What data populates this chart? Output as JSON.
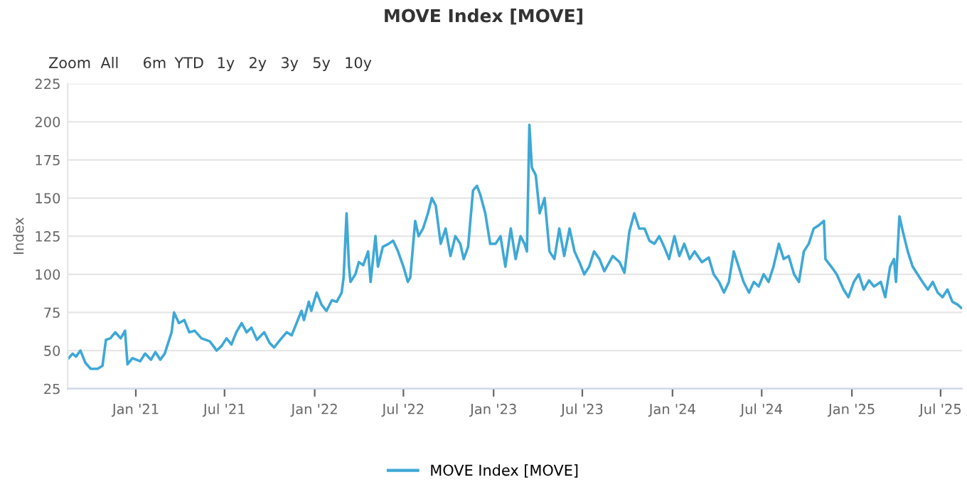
{
  "chart_data": {
    "type": "line",
    "title": "MOVE Index [MOVE]",
    "ylabel": "Index",
    "annotations": [
      "Zoom",
      "All",
      "6m",
      "YTD",
      "1y",
      "2y",
      "3y",
      "5y",
      "10y"
    ],
    "xlim": [
      "2020-08-15",
      "2025-08-14"
    ],
    "ylim": [
      25,
      225
    ],
    "yticks": [
      25,
      50,
      75,
      100,
      125,
      150,
      175,
      200,
      225
    ],
    "xticks": [
      {
        "value": "2021-01-01",
        "label": "Jan '21"
      },
      {
        "value": "2021-07-01",
        "label": "Jul '21"
      },
      {
        "value": "2022-01-01",
        "label": "Jan '22"
      },
      {
        "value": "2022-07-01",
        "label": "Jul '22"
      },
      {
        "value": "2023-01-01",
        "label": "Jan '23"
      },
      {
        "value": "2023-07-01",
        "label": "Jul '23"
      },
      {
        "value": "2024-01-01",
        "label": "Jan '24"
      },
      {
        "value": "2024-07-01",
        "label": "Jul '24"
      },
      {
        "value": "2025-01-01",
        "label": "Jan '25"
      },
      {
        "value": "2025-07-01",
        "label": "Jul '25"
      }
    ],
    "grid": "y",
    "legend": "bottom",
    "marker": "none",
    "line_style": "solid",
    "series": [
      {
        "name": "MOVE Index [MOVE]",
        "color": "#3ea8d6",
        "x": [
          "2020-08-17",
          "2020-08-25",
          "2020-09-01",
          "2020-09-10",
          "2020-09-20",
          "2020-10-01",
          "2020-10-15",
          "2020-10-25",
          "2020-11-01",
          "2020-11-10",
          "2020-11-20",
          "2020-12-01",
          "2020-12-10",
          "2020-12-15",
          "2020-12-25",
          "2021-01-10",
          "2021-01-20",
          "2021-02-01",
          "2021-02-10",
          "2021-02-20",
          "2021-03-01",
          "2021-03-15",
          "2021-03-20",
          "2021-03-30",
          "2021-04-10",
          "2021-04-20",
          "2021-05-01",
          "2021-05-15",
          "2021-06-01",
          "2021-06-15",
          "2021-06-25",
          "2021-07-05",
          "2021-07-15",
          "2021-07-25",
          "2021-08-05",
          "2021-08-15",
          "2021-08-25",
          "2021-09-05",
          "2021-09-20",
          "2021-10-01",
          "2021-10-10",
          "2021-10-25",
          "2021-11-05",
          "2021-11-15",
          "2021-11-25",
          "2021-12-05",
          "2021-12-10",
          "2021-12-20",
          "2021-12-25",
          "2022-01-05",
          "2022-01-15",
          "2022-01-25",
          "2022-02-05",
          "2022-02-15",
          "2022-02-25",
          "2022-03-01",
          "2022-03-07",
          "2022-03-12",
          "2022-03-15",
          "2022-03-25",
          "2022-04-01",
          "2022-04-10",
          "2022-04-20",
          "2022-04-25",
          "2022-05-05",
          "2022-05-10",
          "2022-05-20",
          "2022-06-01",
          "2022-06-10",
          "2022-06-20",
          "2022-07-01",
          "2022-07-10",
          "2022-07-15",
          "2022-07-25",
          "2022-08-01",
          "2022-08-10",
          "2022-08-20",
          "2022-08-28",
          "2022-09-05",
          "2022-09-15",
          "2022-09-25",
          "2022-10-05",
          "2022-10-15",
          "2022-10-25",
          "2022-11-01",
          "2022-11-10",
          "2022-11-20",
          "2022-11-28",
          "2022-12-05",
          "2022-12-15",
          "2022-12-25",
          "2023-01-05",
          "2023-01-15",
          "2023-01-25",
          "2023-02-05",
          "2023-02-15",
          "2023-02-25",
          "2023-03-05",
          "2023-03-10",
          "2023-03-15",
          "2023-03-20",
          "2023-03-28",
          "2023-04-05",
          "2023-04-15",
          "2023-04-25",
          "2023-05-05",
          "2023-05-15",
          "2023-05-25",
          "2023-06-05",
          "2023-06-15",
          "2023-06-25",
          "2023-07-05",
          "2023-07-15",
          "2023-07-25",
          "2023-08-05",
          "2023-08-15",
          "2023-09-01",
          "2023-09-15",
          "2023-09-25",
          "2023-10-05",
          "2023-10-15",
          "2023-10-25",
          "2023-11-05",
          "2023-11-15",
          "2023-11-25",
          "2023-12-05",
          "2023-12-15",
          "2023-12-25",
          "2024-01-05",
          "2024-01-15",
          "2024-01-25",
          "2024-02-05",
          "2024-02-15",
          "2024-03-01",
          "2024-03-15",
          "2024-03-25",
          "2024-04-05",
          "2024-04-15",
          "2024-04-25",
          "2024-05-05",
          "2024-05-15",
          "2024-05-25",
          "2024-06-05",
          "2024-06-15",
          "2024-06-25",
          "2024-07-05",
          "2024-07-15",
          "2024-07-25",
          "2024-08-05",
          "2024-08-15",
          "2024-08-25",
          "2024-09-05",
          "2024-09-15",
          "2024-09-25",
          "2024-10-05",
          "2024-10-15",
          "2024-10-25",
          "2024-11-05",
          "2024-11-08",
          "2024-11-20",
          "2024-12-01",
          "2024-12-15",
          "2024-12-25",
          "2025-01-05",
          "2025-01-15",
          "2025-01-25",
          "2025-02-05",
          "2025-02-15",
          "2025-03-01",
          "2025-03-10",
          "2025-03-20",
          "2025-03-28",
          "2025-04-01",
          "2025-04-08",
          "2025-04-15",
          "2025-04-25",
          "2025-05-05",
          "2025-05-15",
          "2025-05-25",
          "2025-06-05",
          "2025-06-15",
          "2025-06-25",
          "2025-07-05",
          "2025-07-15",
          "2025-07-25",
          "2025-08-05",
          "2025-08-12"
        ],
        "values": [
          45,
          48,
          46,
          50,
          42,
          38,
          38,
          40,
          57,
          58,
          62,
          58,
          63,
          41,
          45,
          43,
          48,
          44,
          49,
          44,
          48,
          62,
          75,
          68,
          70,
          62,
          63,
          58,
          56,
          50,
          53,
          58,
          54,
          62,
          68,
          62,
          65,
          57,
          62,
          55,
          52,
          58,
          62,
          60,
          68,
          76,
          70,
          82,
          76,
          88,
          80,
          76,
          83,
          82,
          88,
          98,
          140,
          105,
          95,
          100,
          108,
          106,
          115,
          95,
          125,
          105,
          118,
          120,
          122,
          115,
          105,
          95,
          98,
          135,
          125,
          130,
          140,
          150,
          145,
          120,
          130,
          112,
          125,
          120,
          110,
          118,
          155,
          158,
          152,
          140,
          120,
          120,
          125,
          105,
          130,
          110,
          125,
          120,
          115,
          198,
          170,
          165,
          140,
          150,
          115,
          110,
          130,
          112,
          130,
          115,
          108,
          100,
          105,
          115,
          110,
          102,
          112,
          108,
          101,
          128,
          140,
          130,
          130,
          122,
          120,
          125,
          118,
          110,
          125,
          112,
          120,
          110,
          115,
          108,
          111,
          100,
          95,
          88,
          95,
          115,
          105,
          95,
          88,
          95,
          92,
          100,
          95,
          105,
          120,
          110,
          112,
          100,
          95,
          115,
          120,
          130,
          132,
          135,
          110,
          105,
          100,
          90,
          85,
          95,
          100,
          90,
          96,
          92,
          95,
          85,
          105,
          110,
          95,
          138,
          128,
          115,
          105,
          100,
          95,
          90,
          95,
          88,
          85,
          90,
          82,
          80,
          78
        ]
      }
    ]
  }
}
